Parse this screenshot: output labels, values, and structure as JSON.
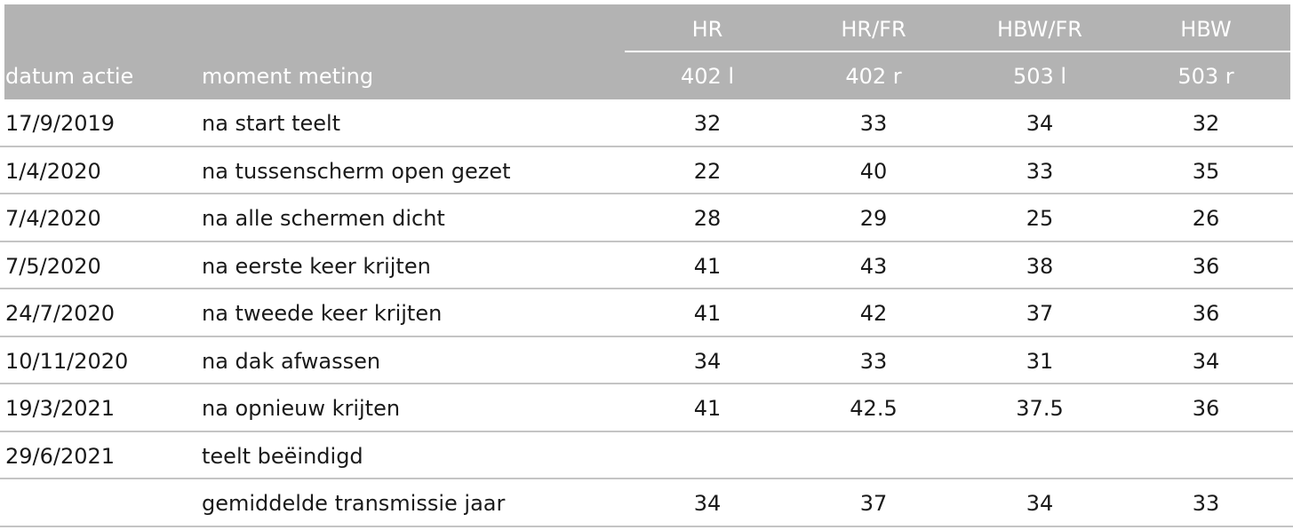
{
  "header": {
    "group_labels": [
      "HR",
      "HR/FR",
      "HBW/FR",
      "HBW"
    ],
    "col_date": "datum actie",
    "col_moment": "moment meting",
    "sub_labels": [
      "402 l",
      "402 r",
      "503 l",
      "503 r"
    ]
  },
  "rows": [
    {
      "date": "17/9/2019",
      "moment": "na start teelt",
      "values": [
        "32",
        "33",
        "34",
        "32"
      ]
    },
    {
      "date": "1/4/2020",
      "moment": "na tussenscherm open gezet",
      "values": [
        "22",
        "40",
        "33",
        "35"
      ]
    },
    {
      "date": "7/4/2020",
      "moment": "na alle schermen dicht",
      "values": [
        "28",
        "29",
        "25",
        "26"
      ]
    },
    {
      "date": "7/5/2020",
      "moment": "na eerste keer krijten",
      "values": [
        "41",
        "43",
        "38",
        "36"
      ]
    },
    {
      "date": "24/7/2020",
      "moment": "na tweede keer krijten",
      "values": [
        "41",
        "42",
        "37",
        "36"
      ]
    },
    {
      "date": "10/11/2020",
      "moment": "na dak afwassen",
      "values": [
        "34",
        "33",
        "31",
        "34"
      ]
    },
    {
      "date": "19/3/2021",
      "moment": "na opnieuw krijten",
      "values": [
        "41",
        "42.5",
        "37.5",
        "36"
      ]
    },
    {
      "date": "29/6/2021",
      "moment": "teelt beëindigd",
      "values": [
        "",
        "",
        "",
        ""
      ]
    },
    {
      "date": "",
      "moment": "gemiddelde transmissie jaar",
      "values": [
        "34",
        "37",
        "34",
        "33"
      ]
    }
  ]
}
